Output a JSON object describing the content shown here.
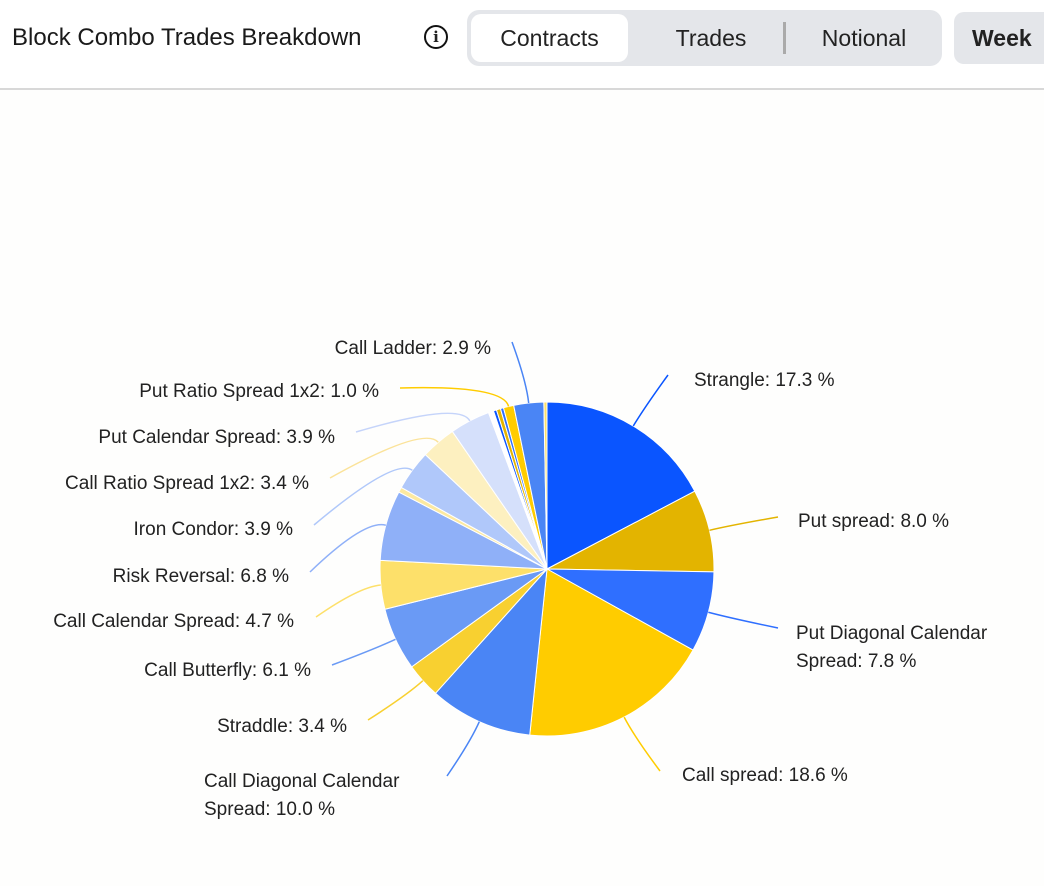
{
  "header": {
    "title": "Block Combo Trades Breakdown",
    "info_icon": "info-icon",
    "tabs": [
      "Contracts",
      "Trades",
      "Notional"
    ],
    "active_tab": "Contracts",
    "period": "Week"
  },
  "chart_data": {
    "type": "pie",
    "title": "Block Combo Trades Breakdown",
    "unit": "%",
    "slices": [
      {
        "label": "Strangle",
        "value": 17.3,
        "color": "#0a55ff",
        "text": "Strangle: 17.3 %"
      },
      {
        "label": "Put spread",
        "value": 8.0,
        "color": "#e3b400",
        "text": "Put spread: 8.0 %"
      },
      {
        "label": "Put Diagonal Calendar Spread",
        "value": 7.8,
        "color": "#2f6fff",
        "text": "Put Diagonal Calendar",
        "text2": "Spread: 7.8 %"
      },
      {
        "label": "Call spread",
        "value": 18.6,
        "color": "#ffcc00",
        "text": "Call spread: 18.6 %"
      },
      {
        "label": "Call Diagonal Calendar Spread",
        "value": 10.0,
        "color": "#4a85f5",
        "text": "Call Diagonal Calendar",
        "text2": "Spread: 10.0 %"
      },
      {
        "label": "Straddle",
        "value": 3.4,
        "color": "#f8d030",
        "text": "Straddle: 3.4 %"
      },
      {
        "label": "Call Butterfly",
        "value": 6.1,
        "color": "#6a9af5",
        "text": "Call Butterfly: 6.1 %"
      },
      {
        "label": "Call Calendar Spread",
        "value": 4.7,
        "color": "#fde06a",
        "text": "Call Calendar Spread: 4.7 %"
      },
      {
        "label": "Risk Reversal",
        "value": 6.8,
        "color": "#8fb0f8",
        "text": "Risk Reversal: 6.8 %"
      },
      {
        "label": "",
        "value": 0.5,
        "color": "#fce9a0"
      },
      {
        "label": "Iron Condor",
        "value": 3.9,
        "color": "#b0c8fa",
        "text": "Iron Condor: 3.9 %"
      },
      {
        "label": "Call Ratio Spread 1x2",
        "value": 3.4,
        "color": "#fdf0c0",
        "text": "Call Ratio Spread 1x2: 3.4 %"
      },
      {
        "label": "Put Calendar Spread",
        "value": 3.9,
        "color": "#d5e0fb",
        "text": "Put Calendar Spread: 3.9 %"
      },
      {
        "label": "",
        "value": 0.5,
        "color": "#ffffff"
      },
      {
        "label": "",
        "value": 0.3,
        "color": "#0a55ff"
      },
      {
        "label": "",
        "value": 0.4,
        "color": "#e3b400"
      },
      {
        "label": "",
        "value": 0.3,
        "color": "#2f6fff"
      },
      {
        "label": "Put Ratio Spread 1x2",
        "value": 1.0,
        "color": "#ffcc00",
        "text": "Put Ratio Spread 1x2: 1.0 %"
      },
      {
        "label": "Call Ladder",
        "value": 2.9,
        "color": "#4a85f5",
        "text": "Call Ladder: 2.9 %"
      },
      {
        "label": "",
        "value": 0.3,
        "color": "#fde06a"
      }
    ]
  }
}
